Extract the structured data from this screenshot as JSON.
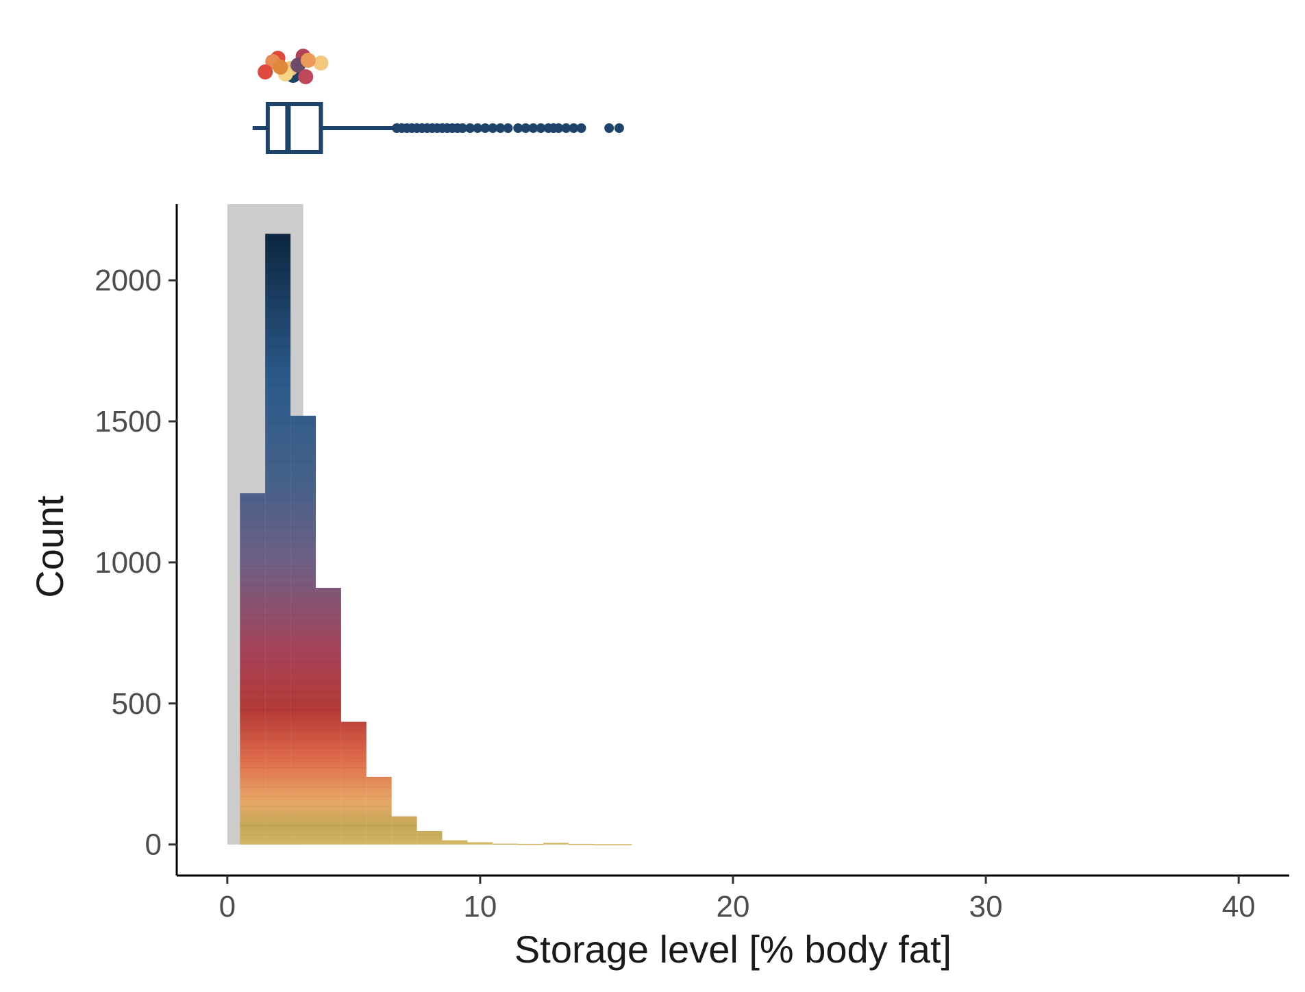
{
  "chart_data": {
    "type": "bar",
    "subtype": "stacked-histogram with marginal boxplot",
    "xlabel": "Storage level [% body fat]",
    "ylabel": "Count",
    "xlim": [
      -2,
      42
    ],
    "ylim": [
      -110,
      2270
    ],
    "x_ticks": [
      0,
      10,
      20,
      30,
      40
    ],
    "y_ticks": [
      0,
      500,
      1000,
      1500,
      2000
    ],
    "grid": false,
    "legend": "none",
    "highlight_band": {
      "x_range": [
        0,
        3
      ],
      "color": "#cccccc"
    },
    "bin_width": 1,
    "bins": [
      {
        "x0": 0.5,
        "x1": 1.5,
        "count": 1245
      },
      {
        "x0": 1.5,
        "x1": 2.5,
        "count": 2165
      },
      {
        "x0": 2.5,
        "x1": 3.5,
        "count": 1520
      },
      {
        "x0": 3.5,
        "x1": 4.5,
        "count": 910
      },
      {
        "x0": 4.5,
        "x1": 5.5,
        "count": 435
      },
      {
        "x0": 5.5,
        "x1": 6.5,
        "count": 240
      },
      {
        "x0": 6.5,
        "x1": 7.5,
        "count": 100
      },
      {
        "x0": 7.5,
        "x1": 8.5,
        "count": 48
      },
      {
        "x0": 8.5,
        "x1": 9.5,
        "count": 15
      },
      {
        "x0": 9.5,
        "x1": 10.5,
        "count": 8
      },
      {
        "x0": 10.5,
        "x1": 11.5,
        "count": 3
      },
      {
        "x0": 11.5,
        "x1": 12.5,
        "count": 2
      },
      {
        "x0": 12.5,
        "x1": 13.5,
        "count": 6
      },
      {
        "x0": 13.5,
        "x1": 14.5,
        "count": 2
      },
      {
        "x0": 14.5,
        "x1": 15.5,
        "count": 1
      },
      {
        "x0": 15.5,
        "x1": 16.0,
        "count": 1
      }
    ],
    "stack_colors": [
      "#d4b765",
      "#c4a858",
      "#e7a766",
      "#df6b4b",
      "#b43a36",
      "#a5435a",
      "#6f5f84",
      "#44618a",
      "#2b5a8a",
      "#0d2640"
    ],
    "boxplot": {
      "min": 1.0,
      "q1": 1.6,
      "median": 2.4,
      "q3": 3.7,
      "whisker_high": 6.6,
      "outliers": [
        6.7,
        6.9,
        7.1,
        7.3,
        7.5,
        7.7,
        7.9,
        8.1,
        8.3,
        8.5,
        8.7,
        8.9,
        9.1,
        9.3,
        9.6,
        9.9,
        10.2,
        10.5,
        10.8,
        11.1,
        11.5,
        11.8,
        12.1,
        12.4,
        12.7,
        12.9,
        13.1,
        13.4,
        13.7,
        14.0,
        15.1,
        15.5
      ],
      "color": "#1d436a"
    },
    "jitter_points": [
      {
        "x": 2.0,
        "color": "#e04a3c"
      },
      {
        "x": 2.6,
        "color": "#1d436a"
      },
      {
        "x": 1.8,
        "color": "#e88b52"
      },
      {
        "x": 2.5,
        "color": "#f0c27a"
      },
      {
        "x": 3.0,
        "color": "#b24057"
      },
      {
        "x": 1.5,
        "color": "#df4a3f"
      },
      {
        "x": 2.3,
        "color": "#f3d584"
      },
      {
        "x": 2.8,
        "color": "#6b4a6b"
      },
      {
        "x": 3.1,
        "color": "#c0475a"
      },
      {
        "x": 3.7,
        "color": "#f3c77e"
      },
      {
        "x": 2.1,
        "color": "#e0883a"
      },
      {
        "x": 3.2,
        "color": "#eb9a57"
      }
    ]
  }
}
